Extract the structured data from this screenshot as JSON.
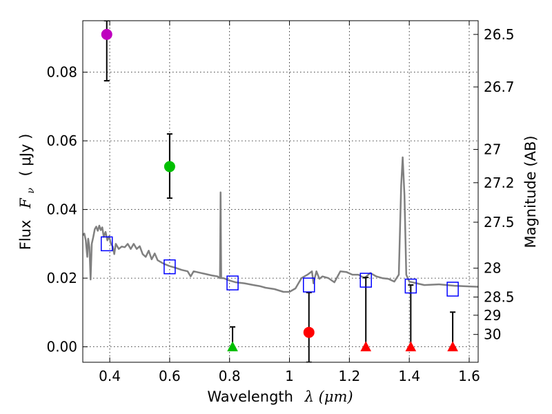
{
  "chart_data": {
    "type": "scatter",
    "title": "",
    "xlabel": "Wavelength",
    "xlabel_math": "λ (μm)",
    "ylabel": "Flux",
    "ylabel_math": "F",
    "ylabel_sub": "ν",
    "ylabel_unit": "( μJy )",
    "y2label": "Magnitude (AB)",
    "xlim": [
      0.31,
      1.63
    ],
    "ylim": [
      -0.0045,
      0.095
    ],
    "grid": true,
    "x_ticks": [
      0.4,
      0.6,
      0.8,
      1.0,
      1.2,
      1.4,
      1.6
    ],
    "x_tick_labels": [
      "0.4",
      "0.6",
      "0.8",
      "1",
      "1.2",
      "1.4",
      "1.6"
    ],
    "y_ticks": [
      0.0,
      0.02,
      0.04,
      0.06,
      0.08
    ],
    "y_tick_labels": [
      "0.00",
      "0.02",
      "0.04",
      "0.06",
      "0.08"
    ],
    "y2_ticks": [
      {
        "label": "26.5",
        "flux": 0.091
      },
      {
        "label": "26.7",
        "flux": 0.0757
      },
      {
        "label": "27",
        "flux": 0.0575
      },
      {
        "label": "27.2",
        "flux": 0.0478
      },
      {
        "label": "27.5",
        "flux": 0.0363
      },
      {
        "label": "28",
        "flux": 0.0229
      },
      {
        "label": "28.5",
        "flux": 0.0145
      },
      {
        "label": "29",
        "flux": 0.0092
      },
      {
        "label": "30",
        "flux": 0.0036
      }
    ],
    "model_color": "#808080",
    "model_sed": [
      [
        0.31,
        0.0325
      ],
      [
        0.315,
        0.033
      ],
      [
        0.32,
        0.031
      ],
      [
        0.325,
        0.0262
      ],
      [
        0.328,
        0.0315
      ],
      [
        0.332,
        0.029
      ],
      [
        0.336,
        0.0196
      ],
      [
        0.34,
        0.03
      ],
      [
        0.345,
        0.032
      ],
      [
        0.35,
        0.0343
      ],
      [
        0.355,
        0.035
      ],
      [
        0.36,
        0.0338
      ],
      [
        0.365,
        0.0353
      ],
      [
        0.37,
        0.034
      ],
      [
        0.375,
        0.0348
      ],
      [
        0.38,
        0.032
      ],
      [
        0.386,
        0.0335
      ],
      [
        0.392,
        0.031
      ],
      [
        0.398,
        0.0322
      ],
      [
        0.404,
        0.03
      ],
      [
        0.41,
        0.0292
      ],
      [
        0.415,
        0.027
      ],
      [
        0.42,
        0.03
      ],
      [
        0.43,
        0.0285
      ],
      [
        0.44,
        0.0292
      ],
      [
        0.45,
        0.029
      ],
      [
        0.46,
        0.03
      ],
      [
        0.47,
        0.0285
      ],
      [
        0.48,
        0.03
      ],
      [
        0.49,
        0.0285
      ],
      [
        0.5,
        0.0293
      ],
      [
        0.51,
        0.027
      ],
      [
        0.52,
        0.0262
      ],
      [
        0.53,
        0.028
      ],
      [
        0.54,
        0.0255
      ],
      [
        0.55,
        0.0272
      ],
      [
        0.56,
        0.0252
      ],
      [
        0.58,
        0.0242
      ],
      [
        0.6,
        0.0235
      ],
      [
        0.62,
        0.023
      ],
      [
        0.64,
        0.0224
      ],
      [
        0.66,
        0.022
      ],
      [
        0.67,
        0.0205
      ],
      [
        0.68,
        0.022
      ],
      [
        0.7,
        0.0216
      ],
      [
        0.72,
        0.0212
      ],
      [
        0.74,
        0.0208
      ],
      [
        0.76,
        0.0205
      ],
      [
        0.768,
        0.02
      ],
      [
        0.77,
        0.045
      ],
      [
        0.772,
        0.02
      ],
      [
        0.78,
        0.02
      ],
      [
        0.8,
        0.0193
      ],
      [
        0.82,
        0.0188
      ],
      [
        0.85,
        0.0185
      ],
      [
        0.88,
        0.018
      ],
      [
        0.9,
        0.0177
      ],
      [
        0.92,
        0.0172
      ],
      [
        0.95,
        0.0168
      ],
      [
        0.98,
        0.016
      ],
      [
        1.0,
        0.016
      ],
      [
        1.02,
        0.017
      ],
      [
        1.04,
        0.02
      ],
      [
        1.06,
        0.021
      ],
      [
        1.075,
        0.022
      ],
      [
        1.08,
        0.0185
      ],
      [
        1.09,
        0.022
      ],
      [
        1.1,
        0.0198
      ],
      [
        1.11,
        0.0205
      ],
      [
        1.13,
        0.02
      ],
      [
        1.15,
        0.0188
      ],
      [
        1.17,
        0.022
      ],
      [
        1.19,
        0.0218
      ],
      [
        1.21,
        0.021
      ],
      [
        1.23,
        0.021
      ],
      [
        1.25,
        0.02
      ],
      [
        1.27,
        0.0215
      ],
      [
        1.29,
        0.0205
      ],
      [
        1.31,
        0.02
      ],
      [
        1.33,
        0.0198
      ],
      [
        1.35,
        0.019
      ],
      [
        1.365,
        0.021
      ],
      [
        1.373,
        0.047
      ],
      [
        1.378,
        0.0552
      ],
      [
        1.384,
        0.044
      ],
      [
        1.39,
        0.021
      ],
      [
        1.4,
        0.019
      ],
      [
        1.42,
        0.0186
      ],
      [
        1.45,
        0.018
      ],
      [
        1.5,
        0.0182
      ],
      [
        1.55,
        0.0178
      ],
      [
        1.6,
        0.0176
      ],
      [
        1.63,
        0.0175
      ]
    ],
    "model_photometry": {
      "marker": "square",
      "color": "#0000ff",
      "points": [
        [
          0.39,
          0.03
        ],
        [
          0.6,
          0.0233
        ],
        [
          0.81,
          0.0186
        ],
        [
          1.065,
          0.018
        ],
        [
          1.255,
          0.0194
        ],
        [
          1.405,
          0.0177
        ],
        [
          1.545,
          0.0168
        ]
      ]
    },
    "detections": [
      {
        "x": 0.39,
        "y": 0.091,
        "yerr_low": 0.0775,
        "yerr_high": 0.095,
        "color": "#bf00bf",
        "marker": "circle"
      },
      {
        "x": 0.6,
        "y": 0.0525,
        "yerr_low": 0.0433,
        "yerr_high": 0.062,
        "color": "#00bf00",
        "marker": "circle"
      },
      {
        "x": 1.065,
        "y": 0.0042,
        "yerr_low": -0.0045,
        "yerr_high": 0.0158,
        "color": "#ff0000",
        "marker": "circle"
      }
    ],
    "upper_limits": [
      {
        "x": 0.81,
        "y": 0.0,
        "limit": 0.0058,
        "color": "#00bf00",
        "marker": "triangle"
      },
      {
        "x": 1.255,
        "y": 0.0,
        "limit": 0.0202,
        "color": "#ff0000",
        "marker": "triangle"
      },
      {
        "x": 1.405,
        "y": 0.0,
        "limit": 0.018,
        "color": "#ff0000",
        "marker": "triangle"
      },
      {
        "x": 1.545,
        "y": 0.0,
        "limit": 0.0101,
        "color": "#ff0000",
        "marker": "triangle"
      }
    ]
  }
}
